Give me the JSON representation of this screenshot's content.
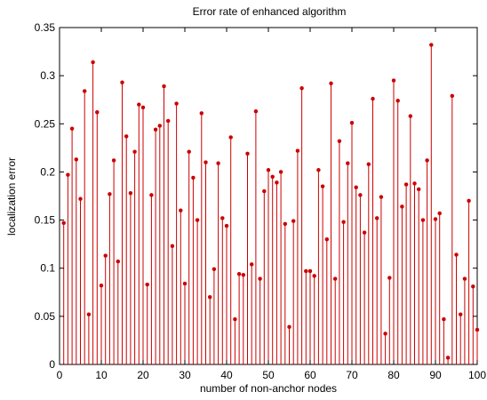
{
  "chart_data": {
    "type": "stem",
    "title": "Error rate of enhanced algorithm",
    "xlabel": "number of non-anchor nodes",
    "ylabel": "localization error",
    "xlim": [
      0,
      100
    ],
    "ylim": [
      0,
      0.35
    ],
    "xticks": [
      0,
      10,
      20,
      30,
      40,
      50,
      60,
      70,
      80,
      90,
      100
    ],
    "yticks": [
      0,
      0.05,
      0.1,
      0.15,
      0.2,
      0.25,
      0.3,
      0.35
    ],
    "grid": false,
    "series_color": "#cc0000",
    "x": [
      1,
      2,
      3,
      4,
      5,
      6,
      7,
      8,
      9,
      10,
      11,
      12,
      13,
      14,
      15,
      16,
      17,
      18,
      19,
      20,
      21,
      22,
      23,
      24,
      25,
      26,
      27,
      28,
      29,
      30,
      31,
      32,
      33,
      34,
      35,
      36,
      37,
      38,
      39,
      40,
      41,
      42,
      43,
      44,
      45,
      46,
      47,
      48,
      49,
      50,
      51,
      52,
      53,
      54,
      55,
      56,
      57,
      58,
      59,
      60,
      61,
      62,
      63,
      64,
      65,
      66,
      67,
      68,
      69,
      70,
      71,
      72,
      73,
      74,
      75,
      76,
      77,
      78,
      79,
      80,
      81,
      82,
      83,
      84,
      85,
      86,
      87,
      88,
      89,
      90,
      91,
      92,
      93,
      94,
      95,
      96,
      97,
      98,
      99,
      100
    ],
    "y": [
      0.147,
      0.197,
      0.245,
      0.213,
      0.172,
      0.284,
      0.052,
      0.314,
      0.262,
      0.082,
      0.113,
      0.177,
      0.212,
      0.107,
      0.293,
      0.237,
      0.178,
      0.221,
      0.27,
      0.267,
      0.083,
      0.176,
      0.244,
      0.248,
      0.289,
      0.253,
      0.123,
      0.271,
      0.16,
      0.084,
      0.221,
      0.194,
      0.15,
      0.261,
      0.21,
      0.07,
      0.099,
      0.209,
      0.152,
      0.144,
      0.236,
      0.047,
      0.094,
      0.093,
      0.219,
      0.104,
      0.263,
      0.089,
      0.18,
      0.202,
      0.195,
      0.189,
      0.2,
      0.146,
      0.039,
      0.149,
      0.222,
      0.287,
      0.097,
      0.097,
      0.092,
      0.202,
      0.185,
      0.13,
      0.292,
      0.089,
      0.232,
      0.148,
      0.209,
      0.251,
      0.184,
      0.176,
      0.137,
      0.208,
      0.276,
      0.152,
      0.174,
      0.032,
      0.09,
      0.295,
      0.274,
      0.164,
      0.187,
      0.258,
      0.188,
      0.182,
      0.15,
      0.212,
      0.332,
      0.151,
      0.157,
      0.047,
      0.007,
      0.279,
      0.114,
      0.052,
      0.089,
      0.17,
      0.081,
      0.036
    ]
  }
}
